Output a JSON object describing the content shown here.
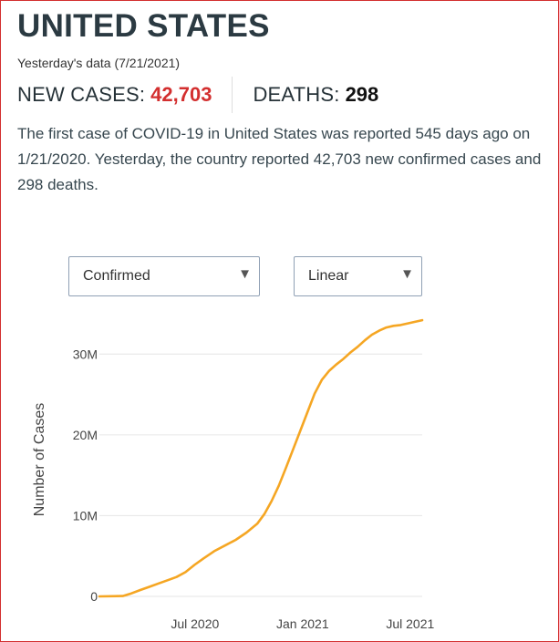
{
  "header": {
    "title": "UNITED STATES",
    "date_text": "Yesterday's data (7/21/2021)"
  },
  "stats": {
    "new_cases_label": "NEW CASES:",
    "new_cases_value": "42,703",
    "deaths_label": "DEATHS:",
    "deaths_value": "298"
  },
  "summary": {
    "text": "The first case of COVID-19 in United States was reported 545 days ago on 1/21/2020. Yesterday, the country reported 42,703 new confirmed cases and 298 deaths."
  },
  "controls": {
    "metric_selected": "Confirmed",
    "scale_selected": "Linear"
  },
  "colors": {
    "accent_red": "#d32f2f",
    "line": "#f5a623",
    "grid": "#e6e6e6"
  },
  "chart_data": {
    "type": "line",
    "title": "",
    "xlabel": "",
    "ylabel": "Number of Cases",
    "x_start": "2020-01-21",
    "x_end": "2021-07-21",
    "xlim_months": [
      0,
      18
    ],
    "ylim": [
      0,
      35000000
    ],
    "yticks": [
      0,
      10000000,
      20000000,
      30000000
    ],
    "ytick_labels": [
      "0",
      "10M",
      "20M",
      "30M"
    ],
    "xticks": [
      5.33,
      11.33,
      17.33
    ],
    "xtick_labels": [
      "Jul 2020",
      "Jan 2021",
      "Jul 2021"
    ],
    "grid": true,
    "series": [
      {
        "name": "Confirmed",
        "x_months": [
          0,
          1.3,
          1.7,
          2.3,
          2.8,
          3.3,
          3.8,
          4.3,
          4.8,
          5.3,
          5.8,
          6.4,
          7.0,
          7.6,
          8.2,
          8.8,
          9.2,
          9.6,
          10.0,
          10.4,
          10.8,
          11.2,
          11.6,
          12.0,
          12.4,
          12.8,
          13.2,
          13.6,
          14.0,
          14.4,
          14.8,
          15.2,
          15.6,
          16.0,
          16.4,
          16.8,
          17.2,
          17.6,
          18.0
        ],
        "values": [
          0,
          50000,
          300000,
          800000,
          1200000,
          1600000,
          2000000,
          2400000,
          3000000,
          3900000,
          4700000,
          5600000,
          6300000,
          7000000,
          7900000,
          9000000,
          10200000,
          11800000,
          13700000,
          15900000,
          18200000,
          20500000,
          22800000,
          25100000,
          26800000,
          27900000,
          28700000,
          29400000,
          30200000,
          30900000,
          31700000,
          32400000,
          32900000,
          33300000,
          33500000,
          33600000,
          33800000,
          34000000,
          34200000
        ]
      }
    ]
  }
}
